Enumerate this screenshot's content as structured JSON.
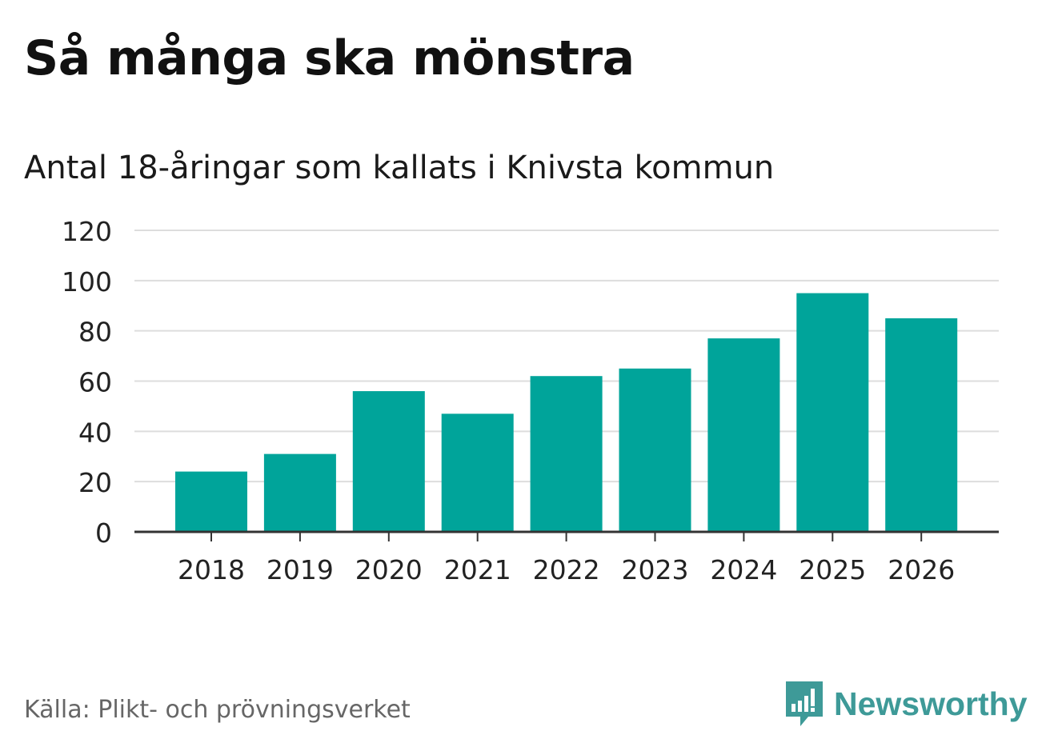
{
  "title": "Så många ska mönstra",
  "subtitle": "Antal 18-åringar som kallats i Knivsta kommun",
  "source": "Källa: Plikt- och prövningsverket",
  "brand": {
    "name": "Newsworthy",
    "icon": "newsworthy-logo-icon",
    "color": "#3e9a98"
  },
  "chart_data": {
    "type": "bar",
    "title": "Så många ska mönstra",
    "subtitle": "Antal 18-åringar som kallats i Knivsta kommun",
    "categories": [
      "2018",
      "2019",
      "2020",
      "2021",
      "2022",
      "2023",
      "2024",
      "2025",
      "2026"
    ],
    "values": [
      24,
      31,
      56,
      47,
      62,
      65,
      77,
      95,
      85
    ],
    "xlabel": "",
    "ylabel": "",
    "ylim": [
      0,
      120
    ],
    "yticks": [
      "0",
      "20",
      "40",
      "60",
      "80",
      "100",
      "120"
    ],
    "grid": true,
    "bar_color": "#00a49a",
    "gridline_color": "#dddddd",
    "axis_color": "#333333"
  }
}
